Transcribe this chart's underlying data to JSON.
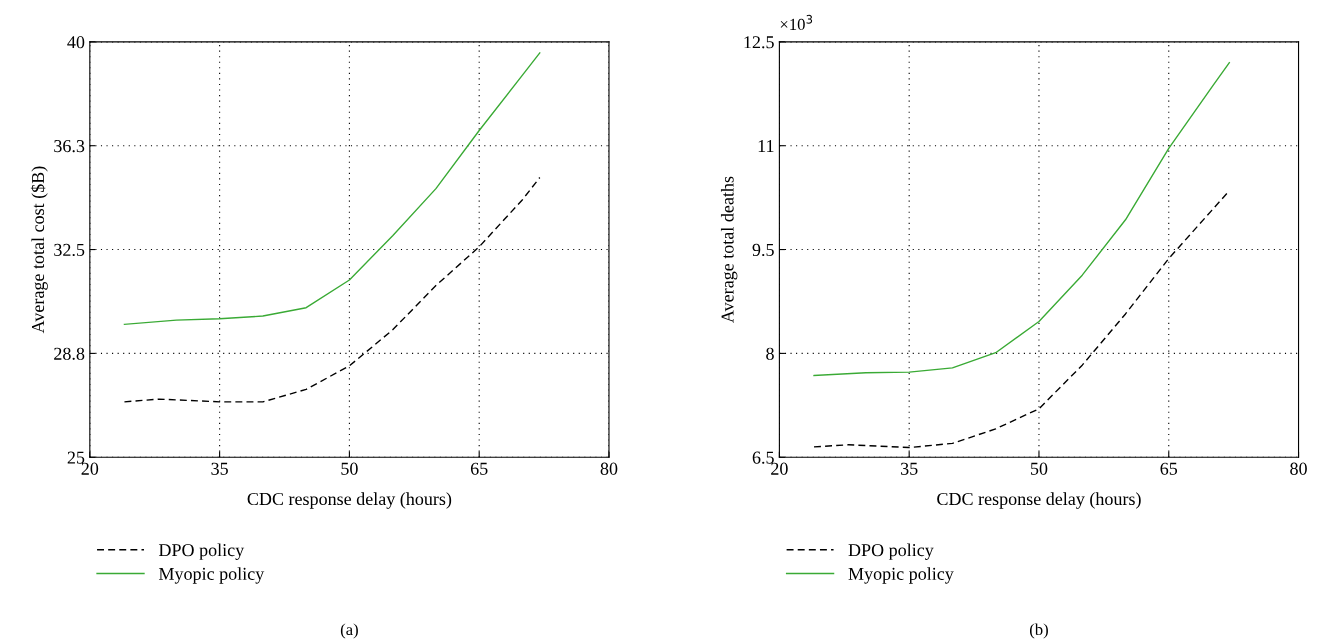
{
  "chart_data": [
    {
      "type": "line",
      "xlabel": "CDC response delay (hours)",
      "ylabel": "Average total cost ($B)",
      "xlim": [
        20,
        80
      ],
      "xticks": [
        20,
        35,
        50,
        65,
        80
      ],
      "ylim": [
        25,
        40
      ],
      "yticks": [
        25,
        {
          "value": 28.75,
          "label": "28.8"
        },
        32.5,
        {
          "value": 36.25,
          "label": "36.3"
        },
        40
      ],
      "grid": true,
      "legend": "bottom",
      "annotations": [
        "(a)"
      ],
      "series": [
        {
          "name": "DPO policy",
          "color": "#000000",
          "line_style": "dashed",
          "x": [
            24,
            28,
            35,
            40,
            45,
            50,
            55,
            60,
            65,
            70,
            72
          ],
          "values": [
            27.0,
            27.1,
            27.0,
            27.0,
            27.45,
            28.3,
            29.6,
            31.2,
            32.6,
            34.3,
            35.1
          ]
        },
        {
          "name": "Myopic policy",
          "color": "#3aaa35",
          "line_style": "solid",
          "x": [
            24,
            30,
            35,
            40,
            45,
            50,
            55,
            60,
            65,
            70,
            72
          ],
          "values": [
            29.8,
            29.95,
            30.0,
            30.1,
            30.4,
            31.4,
            33.0,
            34.7,
            36.8,
            38.8,
            39.6
          ]
        }
      ]
    },
    {
      "type": "line",
      "xlabel": "CDC response delay (hours)",
      "ylabel": "Average total deaths",
      "xlim": [
        20,
        80
      ],
      "xticks": [
        20,
        35,
        50,
        65,
        80
      ],
      "ylim": [
        6.5,
        12.5
      ],
      "yticks": [
        6.5,
        8,
        9.5,
        11,
        12.5
      ],
      "grid": true,
      "legend": "bottom",
      "annotations": [
        "×10$^{3}$",
        "(b)"
      ],
      "series": [
        {
          "name": "DPO policy",
          "color": "#000000",
          "line_style": "dashed",
          "x": [
            24,
            28,
            35,
            40,
            45,
            50,
            55,
            60,
            65,
            70,
            72
          ],
          "values": [
            6.65,
            6.68,
            6.64,
            6.7,
            6.91,
            7.2,
            7.83,
            8.57,
            9.37,
            10.07,
            10.35
          ]
        },
        {
          "name": "Myopic policy",
          "color": "#3aaa35",
          "line_style": "solid",
          "x": [
            24,
            30,
            35,
            40,
            45,
            50,
            55,
            60,
            65,
            70,
            72
          ],
          "values": [
            7.68,
            7.72,
            7.73,
            7.79,
            8.01,
            8.46,
            9.13,
            9.93,
            10.96,
            11.85,
            12.2
          ]
        }
      ]
    }
  ]
}
